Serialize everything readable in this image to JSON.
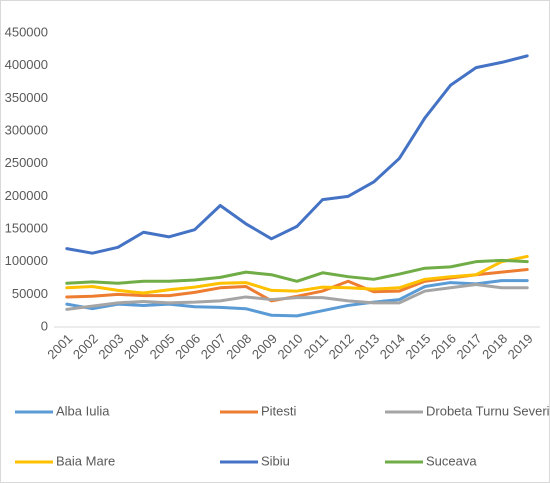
{
  "chart_data": {
    "type": "line",
    "categories": [
      "2001",
      "2002",
      "2003",
      "2004",
      "2005",
      "2006",
      "2007",
      "2008",
      "2009",
      "2010",
      "2011",
      "2012",
      "2013",
      "2014",
      "2015",
      "2016",
      "2017",
      "2018",
      "2019"
    ],
    "series": [
      {
        "name": "Alba Iulia",
        "color": "#5b9bd5",
        "values": [
          35000,
          28000,
          35000,
          33000,
          35000,
          31000,
          30000,
          28000,
          18000,
          17000,
          25000,
          33000,
          38000,
          42000,
          62000,
          68000,
          66000,
          71000,
          71000
        ]
      },
      {
        "name": "Pitesti",
        "color": "#ed7d31",
        "values": [
          46000,
          47000,
          50000,
          48000,
          48000,
          53000,
          60000,
          62000,
          40000,
          47000,
          55000,
          70000,
          54000,
          55000,
          70000,
          75000,
          80000,
          84000,
          88000
        ]
      },
      {
        "name": "Drobeta Turnu Severin",
        "color": "#a5a5a5",
        "values": [
          27000,
          32000,
          37000,
          39000,
          37000,
          38000,
          40000,
          46000,
          42000,
          45000,
          45000,
          40000,
          37000,
          37000,
          55000,
          60000,
          65000,
          60000,
          60000
        ]
      },
      {
        "name": "Baia Mare",
        "color": "#ffc000",
        "values": [
          60000,
          62000,
          56000,
          52000,
          57000,
          61000,
          67000,
          68000,
          56000,
          55000,
          61000,
          60000,
          58000,
          60000,
          73000,
          77000,
          80000,
          100000,
          108000
        ]
      },
      {
        "name": "Sibiu",
        "color": "#4472c4",
        "values": [
          120000,
          113000,
          122000,
          145000,
          138000,
          149000,
          186000,
          158000,
          135000,
          154000,
          195000,
          200000,
          222000,
          258000,
          320000,
          370000,
          397000,
          405000,
          415000
        ]
      },
      {
        "name": "Suceava",
        "color": "#70ad47",
        "values": [
          67000,
          69000,
          67000,
          70000,
          70000,
          72000,
          76000,
          84000,
          80000,
          70000,
          83000,
          77000,
          73000,
          81000,
          90000,
          92000,
          100000,
          102000,
          100000
        ]
      }
    ],
    "ylim": [
      0,
      450000
    ],
    "yticks": [
      0,
      50000,
      100000,
      150000,
      200000,
      250000,
      300000,
      350000,
      400000,
      450000
    ],
    "grid": false,
    "legend": "bottom"
  }
}
